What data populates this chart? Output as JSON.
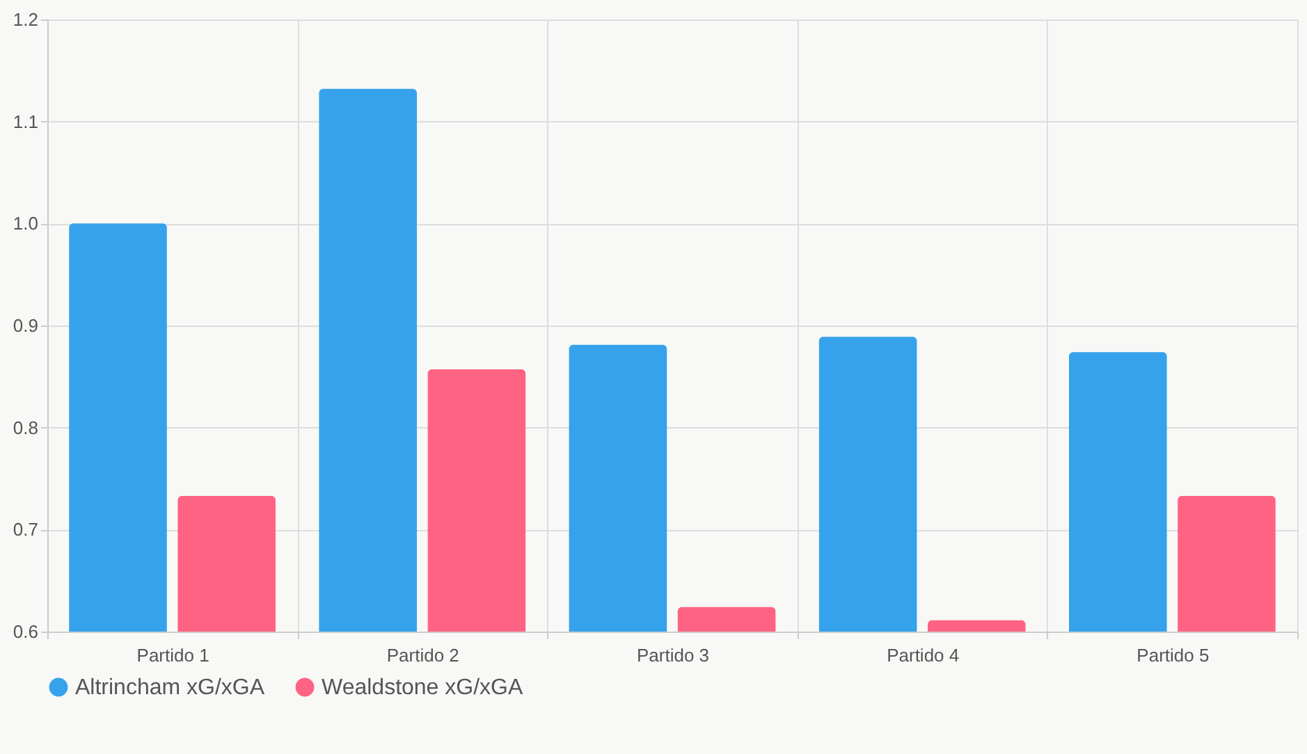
{
  "chart_data": {
    "type": "bar",
    "categories": [
      "Partido 1",
      "Partido 2",
      "Partido 3",
      "Partido 4",
      "Partido 5"
    ],
    "series": [
      {
        "name": "Altrincham xG/xGA",
        "color": "#36a2eb",
        "values": [
          1.0,
          1.132,
          0.881,
          0.889,
          0.874
        ]
      },
      {
        "name": "Wealdstone xG/xGA",
        "color": "#ff6384",
        "values": [
          0.733,
          0.857,
          0.624,
          0.611,
          0.733
        ]
      }
    ],
    "ylim": [
      0.6,
      1.2
    ],
    "yticks": [
      0.6,
      0.7,
      0.8,
      0.9,
      {
        "value": 1.0,
        "label": "1.0"
      },
      1.1,
      1.2
    ],
    "grid": true,
    "legend": "bottom"
  }
}
